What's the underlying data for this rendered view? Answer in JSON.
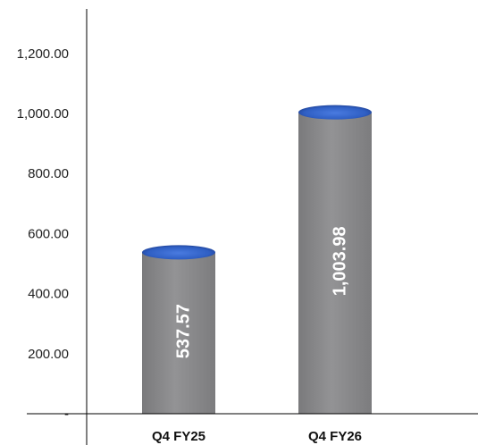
{
  "chart_data": {
    "type": "bar",
    "style": "3d-cylinder",
    "categories": [
      "Q4 FY25",
      "Q4 FY26"
    ],
    "values": [
      537.57,
      1003.98
    ],
    "data_labels": [
      "537.57",
      "1,003.98"
    ],
    "ylim": [
      0,
      1300
    ],
    "y_ticks": [
      0,
      200,
      400,
      600,
      800,
      1000,
      1200
    ],
    "y_tick_labels": [
      "-",
      "200.00",
      "400.00",
      "600.00",
      "800.00",
      "1,000.00",
      "1,200.00"
    ],
    "title": "",
    "xlabel": "",
    "ylabel": "",
    "grid": false,
    "colors": {
      "bar_body": "#8a8a8c",
      "bar_top": "#2f5fc4",
      "bar_top_dark": "#1b3a8a",
      "axis": "#000000"
    }
  }
}
